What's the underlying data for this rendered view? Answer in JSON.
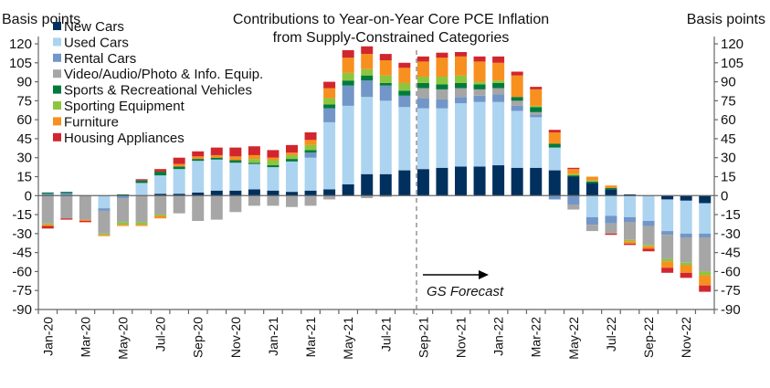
{
  "chart_data": {
    "type": "bar",
    "stacked": true,
    "title": "Contributions to Year-on-Year Core PCE Inflation",
    "subtitle": "from Supply-Constrained Categories",
    "ylabel_left": "Basis points",
    "ylabel_right": "Basis points",
    "ylim": [
      -90,
      120
    ],
    "yticks": [
      120,
      105,
      90,
      75,
      60,
      45,
      30,
      15,
      0,
      -15,
      -30,
      -45,
      -60,
      -75,
      -90
    ],
    "grid": false,
    "legend_position": "top-left",
    "annotation": "GS Forecast",
    "forecast_start": "Sep-21",
    "categories": [
      "Jan-20",
      "Feb-20",
      "Mar-20",
      "Apr-20",
      "May-20",
      "Jun-20",
      "Jul-20",
      "Aug-20",
      "Sep-20",
      "Oct-20",
      "Nov-20",
      "Dec-20",
      "Jan-21",
      "Feb-21",
      "Mar-21",
      "Apr-21",
      "May-21",
      "Jun-21",
      "Jul-21",
      "Aug-21",
      "Sep-21",
      "Oct-21",
      "Nov-21",
      "Dec-21",
      "Jan-22",
      "Feb-22",
      "Mar-22",
      "Apr-22",
      "May-22",
      "Jun-22",
      "Jul-22",
      "Aug-22",
      "Sep-22",
      "Oct-22",
      "Nov-22",
      "Dec-22"
    ],
    "tick_labels": [
      "Jan-20",
      "Mar-20",
      "May-20",
      "Jul-20",
      "Sep-20",
      "Nov-20",
      "Jan-21",
      "Mar-21",
      "May-21",
      "Jul-21",
      "Sep-21",
      "Nov-21",
      "Jan-22",
      "Mar-22",
      "May-22",
      "Jul-22",
      "Sep-22",
      "Nov-22"
    ],
    "series": [
      {
        "name": "New Cars",
        "color": "#00305e",
        "values": [
          0.5,
          0,
          0,
          0,
          0,
          0,
          1.5,
          1.5,
          2.5,
          4,
          4,
          5,
          4,
          3,
          4,
          5,
          9,
          17,
          17,
          20,
          21,
          22,
          23,
          23,
          24,
          22,
          22,
          20,
          15,
          10,
          5,
          1,
          0,
          -3,
          -4,
          -6
        ]
      },
      {
        "name": "Used Cars",
        "color": "#acd4f0",
        "values": [
          0,
          0,
          0,
          -10,
          0,
          10,
          14.5,
          19.5,
          25,
          24.5,
          22,
          20,
          18.5,
          24,
          26,
          53,
          62,
          61,
          58,
          50,
          48,
          47,
          50,
          51,
          50,
          45,
          40,
          18,
          0,
          -17,
          -16,
          -17,
          -20,
          -25,
          -26,
          -24
        ]
      },
      {
        "name": "Rental Cars",
        "color": "#7296c8",
        "values": [
          1,
          2,
          0,
          -2,
          -2,
          0,
          0,
          0,
          0,
          0,
          0,
          0,
          0,
          0,
          4,
          11,
          16,
          13,
          12,
          9,
          8,
          7,
          5,
          5,
          6,
          4,
          2,
          -3,
          -7,
          -6,
          -6,
          -4,
          -4,
          -3,
          -3,
          -3
        ]
      },
      {
        "name": "Video/Audio/Photo & Info. Equip.",
        "color": "#a6a6a6",
        "values": [
          -22,
          -18,
          -19,
          -18,
          -19,
          -21,
          -15,
          -14,
          -20,
          -19,
          -13,
          -8,
          -8,
          -9,
          -8,
          -3,
          0,
          -2,
          -1,
          0,
          8,
          8,
          7,
          5,
          5,
          4,
          2,
          0,
          -4,
          -5,
          -8,
          -14,
          -15,
          -19,
          -20,
          -27
        ]
      },
      {
        "name": "Sports & Recreational Vehicles",
        "color": "#007a3d",
        "values": [
          1,
          1,
          0,
          0,
          1,
          2,
          3,
          2,
          1.5,
          1.5,
          2,
          1,
          1.5,
          2,
          2,
          3,
          4,
          4,
          2,
          4,
          4,
          4,
          4,
          4,
          4,
          3,
          4,
          3,
          1,
          1,
          1,
          0,
          0,
          0,
          0,
          0
        ]
      },
      {
        "name": "Sporting Equipment",
        "color": "#8cc63f",
        "values": [
          -1,
          0,
          0,
          -1,
          -2,
          -2,
          -1,
          0,
          0,
          0,
          0,
          3,
          4,
          3,
          4,
          5,
          6,
          5,
          6,
          6,
          5,
          6,
          6,
          2,
          2,
          0,
          1,
          0,
          1,
          1,
          0,
          -1,
          -1,
          -2,
          -2,
          -3
        ]
      },
      {
        "name": "Furniture",
        "color": "#f7901e",
        "values": [
          -1,
          0,
          -1,
          -1,
          -1,
          -1,
          -2,
          2,
          2,
          2,
          3,
          3,
          2,
          2,
          4,
          8,
          12,
          12,
          12,
          12,
          12,
          15,
          15,
          16,
          14,
          17,
          13,
          9,
          4,
          3,
          2,
          -2,
          -2,
          -5,
          -6,
          -8
        ]
      },
      {
        "name": "Housing Appliances",
        "color": "#d2262e",
        "values": [
          -2,
          -1,
          -1,
          0,
          0,
          1,
          2,
          5,
          4,
          6,
          7,
          7,
          6,
          6,
          6,
          5,
          6,
          6,
          5,
          4,
          4,
          4,
          3.5,
          4,
          5,
          3,
          2,
          2,
          1,
          0,
          -1,
          -1,
          -2,
          -4,
          -4,
          -5
        ]
      }
    ]
  }
}
